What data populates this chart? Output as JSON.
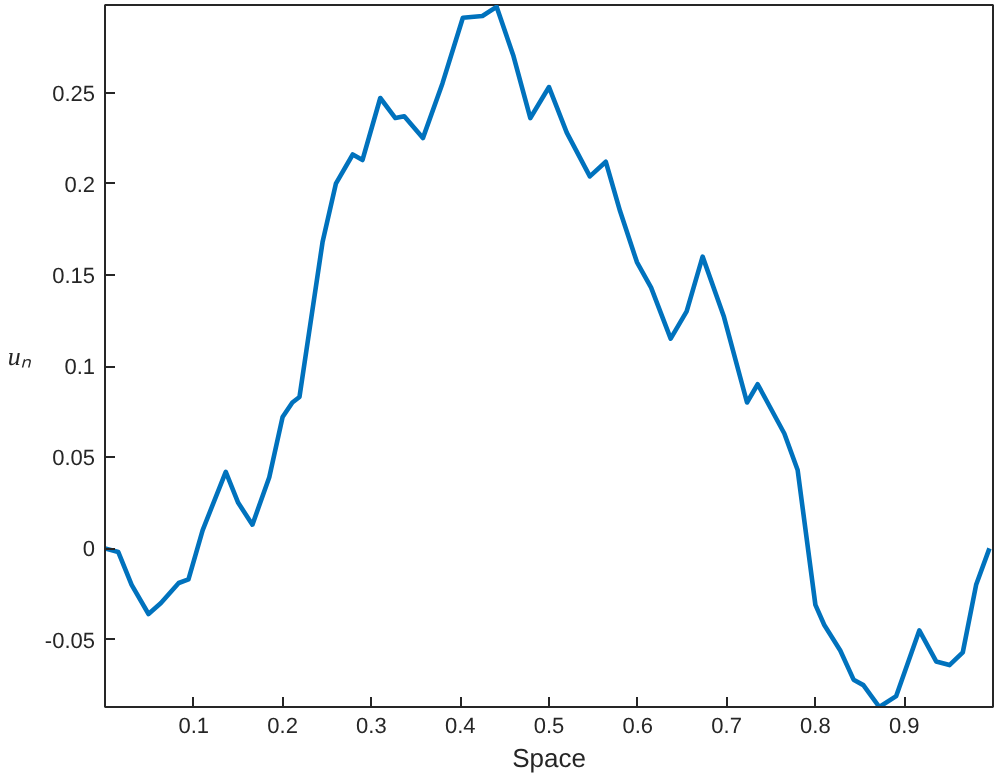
{
  "chart_data": {
    "type": "line",
    "xlabel": "Space",
    "ylabel": "uₙ",
    "x": [
      0.0,
      0.015,
      0.03,
      0.049,
      0.063,
      0.083,
      0.094,
      0.11,
      0.136,
      0.15,
      0.166,
      0.185,
      0.2,
      0.211,
      0.219,
      0.245,
      0.26,
      0.279,
      0.29,
      0.31,
      0.327,
      0.337,
      0.358,
      0.38,
      0.403,
      0.425,
      0.441,
      0.46,
      0.479,
      0.5,
      0.52,
      0.546,
      0.564,
      0.58,
      0.599,
      0.615,
      0.637,
      0.655,
      0.673,
      0.697,
      0.723,
      0.735,
      0.765,
      0.78,
      0.8,
      0.81,
      0.828,
      0.843,
      0.854,
      0.872,
      0.891,
      0.917,
      0.936,
      0.951,
      0.966,
      0.981,
      0.996
    ],
    "series": [
      {
        "color": "#0072bd",
        "values": [
          0.0,
          -0.002,
          -0.02,
          -0.036,
          -0.03,
          -0.019,
          -0.017,
          0.01,
          0.042,
          0.025,
          0.013,
          0.039,
          0.072,
          0.08,
          0.083,
          0.168,
          0.2,
          0.216,
          0.213,
          0.247,
          0.236,
          0.237,
          0.225,
          0.255,
          0.291,
          0.292,
          0.297,
          0.27,
          0.236,
          0.253,
          0.228,
          0.204,
          0.212,
          0.185,
          0.157,
          0.143,
          0.115,
          0.13,
          0.16,
          0.127,
          0.08,
          0.09,
          0.063,
          0.043,
          -0.031,
          -0.042,
          -0.056,
          -0.072,
          -0.075,
          -0.087,
          -0.081,
          -0.045,
          -0.062,
          -0.064,
          -0.057,
          -0.02,
          0.0
        ]
      }
    ],
    "xlim": [
      0,
      1
    ],
    "ylim": [
      -0.087,
      0.298
    ],
    "xticks": [
      0.1,
      0.2,
      0.3,
      0.4,
      0.5,
      0.6,
      0.7,
      0.8,
      0.9
    ],
    "yticks": [
      -0.05,
      0,
      0.05,
      0.1,
      0.15,
      0.2,
      0.25
    ],
    "grid": false,
    "marker": "none",
    "line_style": "solid"
  }
}
